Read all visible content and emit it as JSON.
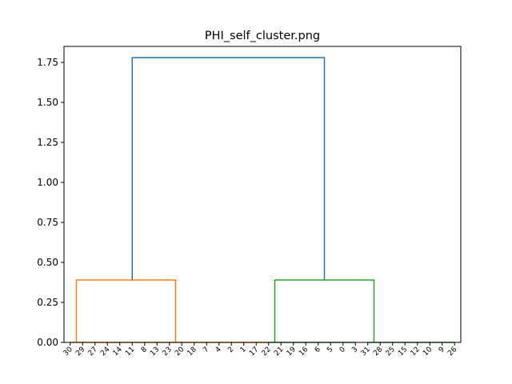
{
  "chart_data": {
    "type": "dendrogram",
    "title": "PHI_self_cluster.png",
    "xlabel": "",
    "ylabel": "",
    "ylim": [
      0,
      1.85
    ],
    "yticks": [
      0.0,
      0.25,
      0.5,
      0.75,
      1.0,
      1.25,
      1.5,
      1.75
    ],
    "ytick_labels": [
      "0.00",
      "0.25",
      "0.50",
      "0.75",
      "1.00",
      "1.25",
      "1.50",
      "1.75"
    ],
    "leaves": [
      "30",
      "29",
      "27",
      "24",
      "14",
      "11",
      "8",
      "13",
      "23",
      "20",
      "18",
      "7",
      "4",
      "2",
      "1",
      "17",
      "22",
      "21",
      "19",
      "16",
      "6",
      "5",
      "0",
      "3",
      "31",
      "28",
      "25",
      "15",
      "12",
      "10",
      "9",
      "26"
    ],
    "colors": {
      "root": "#1f77b4",
      "cluster_a": "#ff7f0e",
      "cluster_b": "#2ca02c",
      "axis": "#000000"
    },
    "links": [
      {
        "x": [
          1,
          5.5,
          5.5,
          15
        ],
        "y": [
          0,
          0,
          0,
          0
        ],
        "color": "cluster_a"
      },
      {
        "x": [
          15,
          15,
          25,
          25
        ],
        "y": [
          0,
          0,
          0,
          0
        ],
        "color": "cluster_a"
      },
      {
        "x": [
          11,
          11,
          20,
          20
        ],
        "y": [
          0,
          0,
          0,
          0
        ],
        "color": "cluster_a"
      },
      {
        "x": [
          1,
          1,
          5.5,
          5.5
        ],
        "y": [
          0,
          0,
          0,
          0
        ],
        "color": "cluster_a"
      },
      {
        "x": [
          15.5,
          15.5,
          26.5,
          26.5
        ],
        "y": [
          0,
          0,
          0,
          0
        ],
        "color": "cluster_a"
      },
      {
        "x": [
          25.5,
          25.5,
          31,
          31
        ],
        "y": [
          0,
          0,
          0,
          0
        ],
        "color": "cluster_a"
      },
      {
        "x": [
          5,
          5,
          15,
          15
        ],
        "y": [
          0,
          0.39,
          0.39,
          0
        ],
        "color": "cluster_a"
      },
      {
        "x": [
          21,
          21,
          26,
          26
        ],
        "y": [
          0,
          0.39,
          0.39,
          0
        ],
        "color": "cluster_b"
      },
      {
        "x": [
          10,
          10,
          23.5,
          23.5
        ],
        "y": [
          0.39,
          1.78,
          1.78,
          0.39
        ],
        "color": "root"
      }
    ],
    "segments": [
      {
        "x0": 0.5,
        "x1": 8.5,
        "y": 0,
        "color": "cluster_a"
      },
      {
        "x0": 8.5,
        "x1": 16.5,
        "y": 0,
        "color": "cluster_a"
      },
      {
        "x0": 16.5,
        "x1": 23.5,
        "y": 0,
        "color": "cluster_b"
      },
      {
        "x0": 24.5,
        "x1": 31.5,
        "y": 0,
        "color": "cluster_b"
      }
    ],
    "u_links": [
      {
        "x_left": 1,
        "x_right": 9,
        "height": 0.39,
        "color": "cluster_a"
      },
      {
        "x_left": 17,
        "x_right": 25,
        "height": 0.39,
        "color": "cluster_b"
      },
      {
        "x_left": 5,
        "x_right": 21,
        "height": 1.78,
        "color": "root"
      }
    ]
  }
}
